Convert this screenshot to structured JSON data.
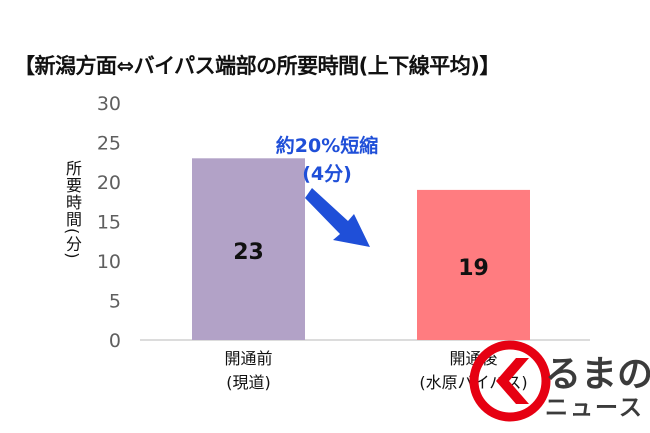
{
  "chart_data": {
    "type": "bar",
    "title": "【新潟方面⇔バイパス端部の所要時間(上下線平均)】",
    "ylabel": "所要時間(分)",
    "xlabel": "",
    "ylim": [
      0,
      30
    ],
    "yticks": [
      0,
      5,
      10,
      15,
      20,
      25,
      30
    ],
    "grid": false,
    "categories": [
      [
        "開通前",
        "(現道)"
      ],
      [
        "開通後",
        "(水原バイパス)"
      ]
    ],
    "values": [
      23,
      19
    ],
    "bar_colors": [
      "#b2a2c7",
      "#ff7c80"
    ],
    "annotation": {
      "line1": "約20%短縮",
      "line2": "(4分)",
      "color": "#1f4fd8"
    }
  },
  "watermark": {
    "line1": "るまの",
    "line2": "ニュース",
    "color": "#e60012"
  }
}
